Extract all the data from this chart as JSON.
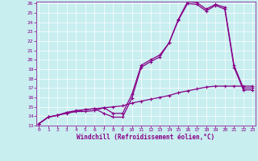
{
  "xlabel": "Windchill (Refroidissement éolien,°C)",
  "bg_color": "#c8eef0",
  "line_color": "#880088",
  "xlim": [
    0,
    23
  ],
  "ylim": [
    13,
    26
  ],
  "xticks": [
    0,
    1,
    2,
    3,
    4,
    5,
    6,
    7,
    8,
    9,
    10,
    11,
    12,
    13,
    14,
    15,
    16,
    17,
    18,
    19,
    20,
    21,
    22,
    23
  ],
  "yticks": [
    13,
    14,
    15,
    16,
    17,
    18,
    19,
    20,
    21,
    22,
    23,
    24,
    25,
    26
  ],
  "line1_x": [
    0,
    1,
    2,
    3,
    4,
    5,
    6,
    7,
    8,
    9,
    10,
    11,
    12,
    13,
    14,
    15,
    16,
    17,
    18,
    19,
    20,
    21,
    22,
    23
  ],
  "line1_y": [
    13.2,
    13.9,
    14.1,
    14.4,
    14.5,
    14.5,
    14.6,
    14.9,
    14.3,
    14.3,
    16.3,
    19.4,
    20.0,
    20.5,
    21.8,
    24.3,
    26.2,
    26.1,
    25.4,
    25.9,
    25.6,
    19.4,
    17.0,
    17.0
  ],
  "line2_x": [
    0,
    1,
    2,
    3,
    4,
    5,
    6,
    7,
    8,
    9,
    10,
    11,
    12,
    13,
    14,
    15,
    16,
    17,
    18,
    19,
    20,
    21,
    22,
    23
  ],
  "line2_y": [
    13.2,
    13.9,
    14.1,
    14.4,
    14.6,
    14.7,
    14.8,
    14.3,
    13.9,
    13.9,
    15.9,
    19.2,
    19.8,
    20.3,
    21.8,
    24.2,
    26.0,
    25.9,
    25.2,
    25.8,
    25.4,
    19.2,
    16.8,
    16.8
  ],
  "line3_x": [
    0,
    1,
    2,
    3,
    4,
    5,
    6,
    7,
    8,
    9,
    10,
    11,
    12,
    13,
    14,
    15,
    16,
    17,
    18,
    19,
    20,
    21,
    22,
    23
  ],
  "line3_y": [
    13.2,
    13.9,
    14.1,
    14.3,
    14.5,
    14.7,
    14.8,
    14.9,
    15.0,
    15.1,
    15.4,
    15.6,
    15.8,
    16.0,
    16.2,
    16.5,
    16.7,
    16.9,
    17.1,
    17.2,
    17.2,
    17.2,
    17.2,
    17.2
  ]
}
